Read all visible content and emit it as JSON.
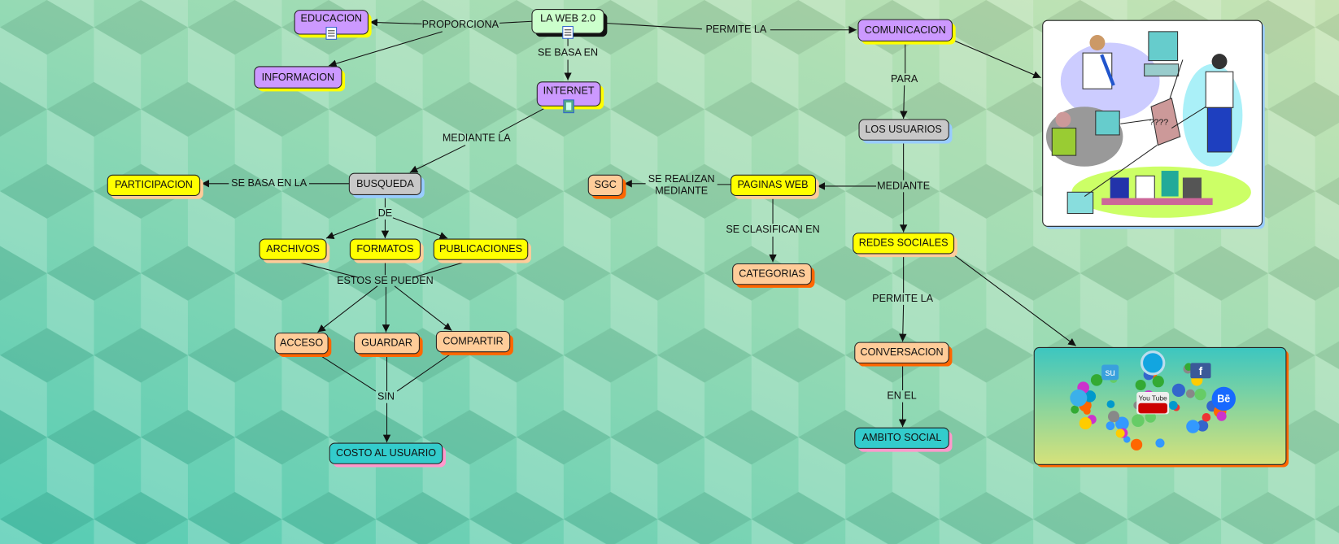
{
  "colors": {
    "purple": "#cc99ff",
    "yellow": "#ffff00",
    "gray": "#c8c8c8",
    "peach": "#ffcc99",
    "teal": "#33cccc",
    "light_green": "#ccffcc"
  },
  "nodes": {
    "web20": "LA WEB 2.0",
    "educacion": "EDUCACION",
    "informacion": "INFORMACION",
    "internet": "INTERNET",
    "comunicacion": "COMUNICACION",
    "busqueda": "BUSQUEDA",
    "participacion": "PARTICIPACION",
    "archivos": "ARCHIVOS",
    "formatos": "FORMATOS",
    "publicaciones": "PUBLICACIONES",
    "acceso": "ACCESO",
    "guardar": "GUARDAR",
    "compartir": "COMPARTIR",
    "costo": "COSTO AL USUARIO",
    "sgc": "SGC",
    "paginas": "PAGINAS WEB",
    "categorias": "CATEGORIAS",
    "usuarios": "LOS USUARIOS",
    "redes": "REDES SOCIALES",
    "conversacion": "CONVERSACION",
    "ambito": "AMBITO SOCIAL"
  },
  "links": {
    "proporciona": "PROPORCIONA",
    "se_basa_en": "SE BASA EN",
    "permite_la_1": "PERMITE LA",
    "mediante_la": "MEDIANTE LA",
    "se_basa_en_la": "SE BASA EN LA",
    "de": "DE",
    "estos_se_pueden": "ESTOS SE PUEDEN",
    "sin": "SIN",
    "para": "PARA",
    "se_realizan_1": "SE REALIZAN",
    "se_realizan_2": "MEDIANTE",
    "mediante": "MEDIANTE",
    "se_clasifican_en": "SE CLASIFICAN EN",
    "permite_la_2": "PERMITE LA",
    "en_el": "EN EL"
  },
  "images": {
    "people_computers_label": "????",
    "social_icons": [
      "su",
      "f",
      "You Tube",
      "Bē"
    ]
  },
  "icons": {
    "resource_document": "document-icon",
    "resource_video": "film-icon"
  }
}
